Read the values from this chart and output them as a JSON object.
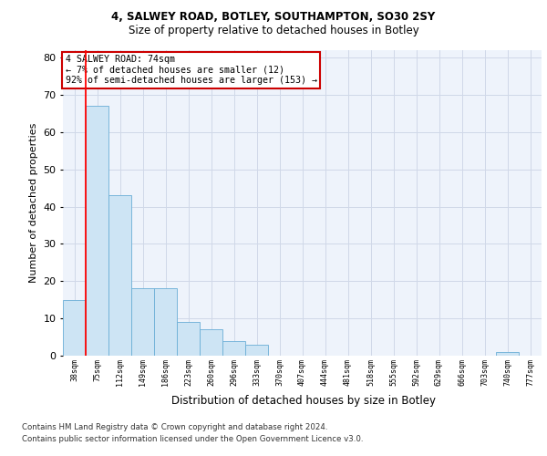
{
  "title1": "4, SALWEY ROAD, BOTLEY, SOUTHAMPTON, SO30 2SY",
  "title2": "Size of property relative to detached houses in Botley",
  "xlabel": "Distribution of detached houses by size in Botley",
  "ylabel": "Number of detached properties",
  "bar_labels": [
    "38sqm",
    "75sqm",
    "112sqm",
    "149sqm",
    "186sqm",
    "223sqm",
    "260sqm",
    "296sqm",
    "333sqm",
    "370sqm",
    "407sqm",
    "444sqm",
    "481sqm",
    "518sqm",
    "555sqm",
    "592sqm",
    "629sqm",
    "666sqm",
    "703sqm",
    "740sqm",
    "777sqm"
  ],
  "bar_values": [
    15,
    67,
    43,
    18,
    18,
    9,
    7,
    4,
    3,
    0,
    0,
    0,
    0,
    0,
    0,
    0,
    0,
    0,
    0,
    1,
    0
  ],
  "bar_color": "#cde4f4",
  "bar_edge_color": "#6aaed6",
  "grid_color": "#d0d8e8",
  "bg_color": "#eef3fb",
  "red_line_index": 1,
  "annotation_text": "4 SALWEY ROAD: 74sqm\n← 7% of detached houses are smaller (12)\n92% of semi-detached houses are larger (153) →",
  "annotation_box_color": "#ffffff",
  "annotation_box_edge": "#cc0000",
  "ylim": [
    0,
    82
  ],
  "yticks": [
    0,
    10,
    20,
    30,
    40,
    50,
    60,
    70,
    80
  ],
  "footnote1": "Contains HM Land Registry data © Crown copyright and database right 2024.",
  "footnote2": "Contains public sector information licensed under the Open Government Licence v3.0."
}
